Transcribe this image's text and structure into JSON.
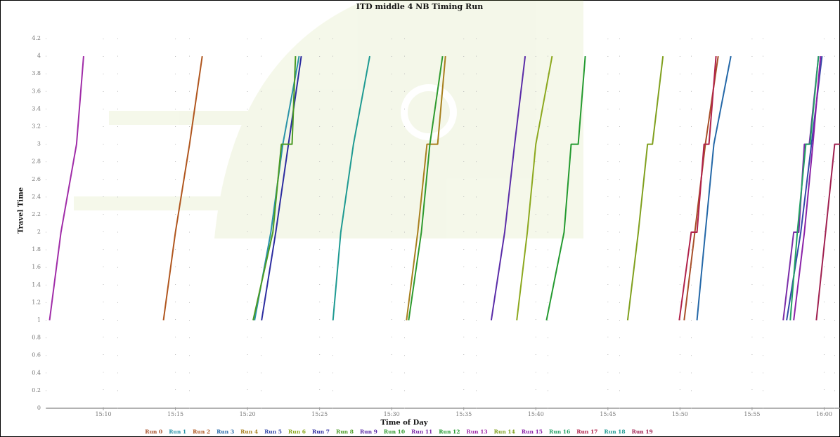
{
  "chart_data": {
    "type": "line",
    "title": "ITD middle 4 NB Timing Run",
    "x_label": "Time of Day",
    "y_label": "Travel Time",
    "xlim": [
      906,
      961.1
    ],
    "ylim": [
      0,
      4.2
    ],
    "xticks": [
      {
        "value": 910,
        "label": "15:10"
      },
      {
        "value": 915,
        "label": "15:15"
      },
      {
        "value": 920,
        "label": "15:20"
      },
      {
        "value": 925,
        "label": "15:25"
      },
      {
        "value": 930,
        "label": "15:30"
      },
      {
        "value": 935,
        "label": "15:35"
      },
      {
        "value": 940,
        "label": "15:40"
      },
      {
        "value": 945,
        "label": "15:45"
      },
      {
        "value": 950,
        "label": "15:50"
      },
      {
        "value": 955,
        "label": "15:55"
      },
      {
        "value": 960,
        "label": "16:00"
      }
    ],
    "yticks": [
      0,
      0.2,
      0.4,
      0.6,
      0.8,
      1,
      1.2,
      1.4,
      1.6,
      1.8,
      2,
      2.2,
      2.4,
      2.6,
      2.8,
      3,
      3.2,
      3.4,
      3.6,
      3.8,
      4,
      4.2
    ],
    "grid": true,
    "legend": "bottom",
    "series": [
      {
        "name": "Run 0",
        "color": "#a8502a",
        "x": [
          950.29,
          951.03,
          951.76,
          951.76,
          952.65
        ],
        "values": [
          1,
          2,
          3,
          3,
          4
        ]
      },
      {
        "name": "Run 1",
        "color": "#2a93a8",
        "x": [
          920.49,
          921.62,
          922.45,
          922.45,
          923.58
        ],
        "values": [
          1,
          2,
          3,
          3,
          4
        ]
      },
      {
        "name": "Run 2",
        "color": "#b0561e",
        "x": [
          914.17,
          915.0,
          915.98,
          915.98,
          916.86
        ],
        "values": [
          1,
          2,
          3,
          3,
          4
        ]
      },
      {
        "name": "Run 3",
        "color": "#2468a8",
        "x": [
          951.18,
          951.76,
          952.35,
          952.35,
          953.53
        ],
        "values": [
          1,
          2,
          3,
          3,
          4
        ]
      },
      {
        "name": "Run 4",
        "color": "#a8801e",
        "x": [
          931.03,
          931.81,
          932.45,
          933.19,
          933.73
        ],
        "values": [
          1,
          2,
          3,
          3,
          4
        ]
      },
      {
        "name": "Run 5",
        "color": "#3448a8",
        "x": [
          957.4,
          958.38,
          959.12,
          959.12,
          959.85
        ],
        "values": [
          1,
          2,
          3,
          3,
          4
        ]
      },
      {
        "name": "Run 6",
        "color": "#8ca81e",
        "x": [
          938.68,
          939.41,
          940.0,
          940.0,
          941.13
        ],
        "values": [
          1,
          2,
          3,
          3,
          4
        ]
      },
      {
        "name": "Run 7",
        "color": "#2c2ca0",
        "x": [
          920.98,
          921.96,
          922.84,
          922.84,
          923.73
        ],
        "values": [
          1,
          2,
          3,
          3,
          4
        ]
      },
      {
        "name": "Run 8",
        "color": "#4a9a24",
        "x": [
          920.39,
          921.76,
          922.35,
          923.09,
          923.33
        ],
        "values": [
          1,
          2,
          3,
          3,
          4
        ]
      },
      {
        "name": "Run 9",
        "color": "#5a2ca8",
        "x": [
          936.91,
          937.84,
          938.53,
          938.53,
          939.26
        ],
        "values": [
          1,
          2,
          3,
          3,
          4
        ]
      },
      {
        "name": "Run 10",
        "color": "#2e9a2e",
        "x": [
          931.18,
          932.06,
          932.65,
          932.65,
          933.53
        ],
        "values": [
          1,
          2,
          3,
          3,
          4
        ]
      },
      {
        "name": "Run 11",
        "color": "#7a2ca8",
        "x": [
          957.16,
          957.89,
          958.24,
          958.63,
          958.97,
          959.61
        ],
        "values": [
          1,
          2,
          2,
          3,
          3,
          4
        ]
      },
      {
        "name": "Run 12",
        "color": "#249a30",
        "x": [
          940.74,
          941.96,
          942.45,
          942.94,
          943.43
        ],
        "values": [
          1,
          2,
          3,
          3,
          4
        ]
      },
      {
        "name": "Run 13",
        "color": "#a02ca8",
        "x": [
          906.27,
          907.06,
          908.14,
          908.14,
          908.63
        ],
        "values": [
          1,
          2,
          3,
          3,
          4
        ]
      },
      {
        "name": "Run 14",
        "color": "#80a01e",
        "x": [
          946.37,
          947.11,
          947.75,
          948.09,
          948.82
        ],
        "values": [
          1,
          2,
          3,
          3,
          4
        ]
      },
      {
        "name": "Run 15",
        "color": "#8a22a8",
        "x": [
          957.89,
          958.63,
          959.22,
          959.22,
          959.75
        ],
        "values": [
          1,
          2,
          3,
          3,
          4
        ]
      },
      {
        "name": "Run 16",
        "color": "#22a064",
        "x": [
          957.65,
          958.14,
          958.73,
          959.02,
          959.61
        ],
        "values": [
          1,
          2,
          3,
          3,
          4
        ]
      },
      {
        "name": "Run 17",
        "color": "#b0224a",
        "x": [
          949.95,
          950.78,
          951.18,
          951.67,
          952.01,
          952.5
        ],
        "values": [
          1,
          2,
          2,
          3,
          3,
          4
        ]
      },
      {
        "name": "Run 18",
        "color": "#1e9a92",
        "x": [
          925.93,
          926.47,
          927.35,
          927.35,
          928.48
        ],
        "values": [
          1,
          2,
          3,
          3,
          4
        ]
      },
      {
        "name": "Run 19",
        "color": "#a02050",
        "x": [
          959.46,
          960.1,
          960.73,
          961.1
        ],
        "values": [
          1,
          2,
          3,
          3
        ]
      }
    ]
  }
}
